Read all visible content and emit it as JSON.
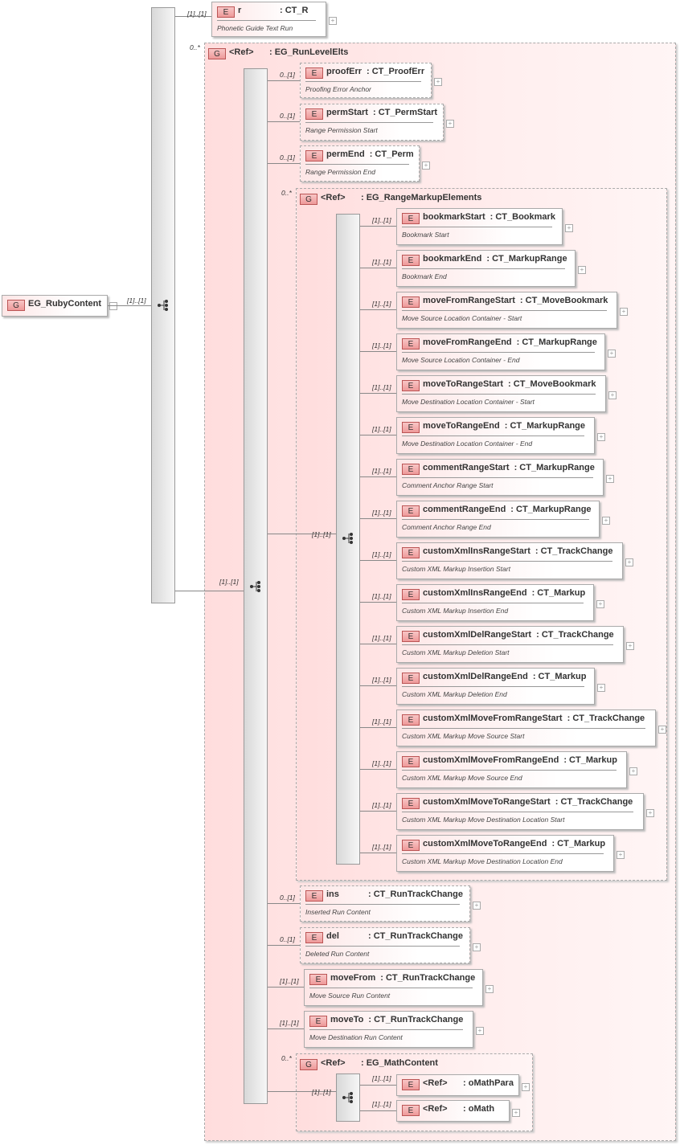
{
  "root": {
    "badge": "G",
    "name": "EG_RubyContent",
    "multiplicity": "[1]..[1]"
  },
  "nodes": [
    {
      "kind": "element",
      "badge": "E",
      "name": "r",
      "type": ": CT_R",
      "doc": "Phonetic Guide Text Run",
      "multiplicity": "[1]..[1]",
      "optional": false
    },
    {
      "kind": "group",
      "badge": "G",
      "name": "<Ref>",
      "type": ": EG_RunLevelElts",
      "multiplicity": "0..*",
      "inner_multiplicity": "[1]..[1]"
    },
    {
      "kind": "element",
      "badge": "E",
      "name": "proofErr",
      "type": ": CT_ProofErr",
      "doc": "Proofing Error Anchor",
      "multiplicity": "0..[1]",
      "optional": true
    },
    {
      "kind": "element",
      "badge": "E",
      "name": "permStart",
      "type": ": CT_PermStart",
      "doc": "Range Permission Start",
      "multiplicity": "0..[1]",
      "optional": true
    },
    {
      "kind": "element",
      "badge": "E",
      "name": "permEnd",
      "type": ": CT_Perm",
      "doc": "Range Permission End",
      "multiplicity": "0..[1]",
      "optional": true
    },
    {
      "kind": "group",
      "badge": "G",
      "name": "<Ref>",
      "type": ": EG_RangeMarkupElements",
      "multiplicity": "0..*",
      "inner_multiplicity": "[1]..[1]"
    },
    {
      "kind": "element",
      "badge": "E",
      "name": "bookmarkStart",
      "type": ": CT_Bookmark",
      "doc": "Bookmark Start",
      "multiplicity": "[1]..[1]"
    },
    {
      "kind": "element",
      "badge": "E",
      "name": "bookmarkEnd",
      "type": ": CT_MarkupRange",
      "doc": "Bookmark End",
      "multiplicity": "[1]..[1]"
    },
    {
      "kind": "element",
      "badge": "E",
      "name": "moveFromRangeStart",
      "type": ": CT_MoveBookmark",
      "doc": "Move Source Location Container - Start",
      "multiplicity": "[1]..[1]"
    },
    {
      "kind": "element",
      "badge": "E",
      "name": "moveFromRangeEnd",
      "type": ": CT_MarkupRange",
      "doc": "Move Source Location Container - End",
      "multiplicity": "[1]..[1]"
    },
    {
      "kind": "element",
      "badge": "E",
      "name": "moveToRangeStart",
      "type": ": CT_MoveBookmark",
      "doc": "Move Destination Location Container - Start",
      "multiplicity": "[1]..[1]"
    },
    {
      "kind": "element",
      "badge": "E",
      "name": "moveToRangeEnd",
      "type": ": CT_MarkupRange",
      "doc": "Move Destination Location Container - End",
      "multiplicity": "[1]..[1]"
    },
    {
      "kind": "element",
      "badge": "E",
      "name": "commentRangeStart",
      "type": ": CT_MarkupRange",
      "doc": "Comment Anchor Range Start",
      "multiplicity": "[1]..[1]"
    },
    {
      "kind": "element",
      "badge": "E",
      "name": "commentRangeEnd",
      "type": ": CT_MarkupRange",
      "doc": "Comment Anchor Range End",
      "multiplicity": "[1]..[1]"
    },
    {
      "kind": "element",
      "badge": "E",
      "name": "customXmlInsRangeStart",
      "type": ": CT_TrackChange",
      "doc": "Custom XML Markup Insertion Start",
      "multiplicity": "[1]..[1]"
    },
    {
      "kind": "element",
      "badge": "E",
      "name": "customXmlInsRangeEnd",
      "type": ": CT_Markup",
      "doc": "Custom XML Markup Insertion End",
      "multiplicity": "[1]..[1]"
    },
    {
      "kind": "element",
      "badge": "E",
      "name": "customXmlDelRangeStart",
      "type": ": CT_TrackChange",
      "doc": "Custom XML Markup Deletion Start",
      "multiplicity": "[1]..[1]"
    },
    {
      "kind": "element",
      "badge": "E",
      "name": "customXmlDelRangeEnd",
      "type": ": CT_Markup",
      "doc": "Custom XML Markup Deletion End",
      "multiplicity": "[1]..[1]"
    },
    {
      "kind": "element",
      "badge": "E",
      "name": "customXmlMoveFromRangeStart",
      "type": ": CT_TrackChange",
      "doc": "Custom XML Markup Move Source Start",
      "multiplicity": "[1]..[1]"
    },
    {
      "kind": "element",
      "badge": "E",
      "name": "customXmlMoveFromRangeEnd",
      "type": ": CT_Markup",
      "doc": "Custom XML Markup Move Source End",
      "multiplicity": "[1]..[1]"
    },
    {
      "kind": "element",
      "badge": "E",
      "name": "customXmlMoveToRangeStart",
      "type": ": CT_TrackChange",
      "doc": "Custom XML Markup Move Destination Location Start",
      "multiplicity": "[1]..[1]"
    },
    {
      "kind": "element",
      "badge": "E",
      "name": "customXmlMoveToRangeEnd",
      "type": ": CT_Markup",
      "doc": "Custom XML Markup Move Destination Location End",
      "multiplicity": "[1]..[1]"
    },
    {
      "kind": "element",
      "badge": "E",
      "name": "ins",
      "type": ": CT_RunTrackChange",
      "doc": "Inserted Run Content",
      "multiplicity": "0..[1]",
      "optional": true
    },
    {
      "kind": "element",
      "badge": "E",
      "name": "del",
      "type": ": CT_RunTrackChange",
      "doc": "Deleted Run Content",
      "multiplicity": "0..[1]",
      "optional": true
    },
    {
      "kind": "element",
      "badge": "E",
      "name": "moveFrom",
      "type": ": CT_RunTrackChange",
      "doc": "Move Source Run Content",
      "multiplicity": "[1]..[1]"
    },
    {
      "kind": "element",
      "badge": "E",
      "name": "moveTo",
      "type": ": CT_RunTrackChange",
      "doc": "Move Destination Run Content",
      "multiplicity": "[1]..[1]"
    },
    {
      "kind": "group",
      "badge": "G",
      "name": "<Ref>",
      "type": ": EG_MathContent",
      "multiplicity": "0..*",
      "inner_multiplicity": "[1]..[1]"
    },
    {
      "kind": "element",
      "badge": "E",
      "name": "<Ref>",
      "type": ": oMathPara",
      "doc": "",
      "multiplicity": "[1]..[1]"
    },
    {
      "kind": "element",
      "badge": "E",
      "name": "<Ref>",
      "type": ": oMath",
      "doc": "",
      "multiplicity": "[1]..[1]"
    }
  ],
  "colors": {
    "element_fill": "#fde6e6",
    "group_fill": "#ffdddd",
    "badge_fill": "#ee9999",
    "border": "#aaaaaa"
  }
}
